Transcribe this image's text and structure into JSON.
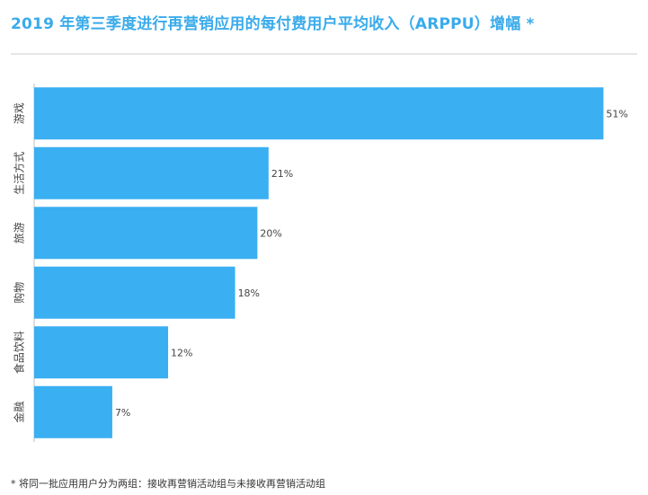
{
  "title": "2019 年第三季度进行再营销应用的每付费用户平均收入（ARPPU）增幅 *",
  "footnote": "* 将同一批应用用户分为两组：接收再营销活动组与未接收再营销活动组",
  "colors": {
    "title": "#3aabeb",
    "bar": "#3aaff2",
    "axis": "#bfbfbf"
  },
  "chart_data": {
    "type": "bar",
    "orientation": "horizontal",
    "categories": [
      "游戏",
      "生活方式",
      "旅游",
      "购物",
      "食品饮料",
      "金融"
    ],
    "values": [
      51,
      21,
      20,
      18,
      12,
      7
    ],
    "value_labels": [
      "51%",
      "21%",
      "20%",
      "18%",
      "12%",
      "7%"
    ],
    "xlim": [
      0,
      53.3
    ],
    "grid": false,
    "legend": "none"
  }
}
